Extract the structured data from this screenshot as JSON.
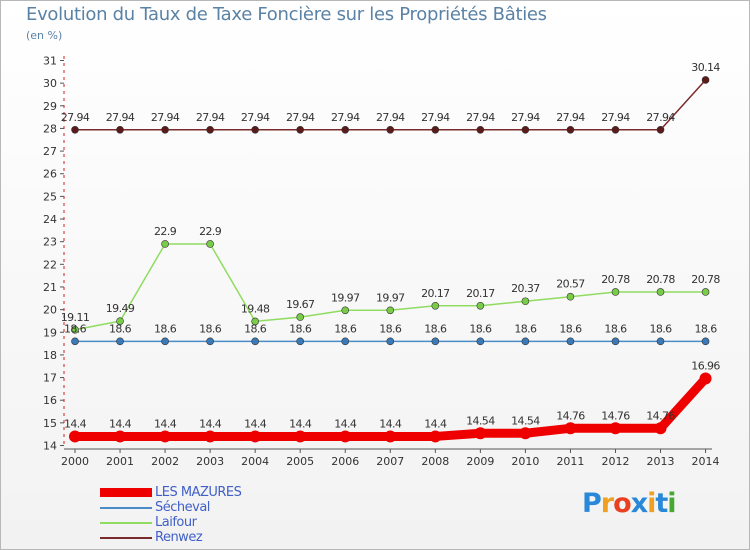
{
  "title": "Evolution du Taux de Taxe Foncière sur les Propriétés Bâties",
  "subtitle": "(en %)",
  "logo": {
    "text": "Proxiti",
    "colors": [
      "#2a88d8",
      "#f0a020",
      "#e84020",
      "#2a88d8",
      "#f0a020",
      "#2a88d8",
      "#48a830"
    ]
  },
  "chart_data": {
    "type": "line",
    "x": [
      "2000",
      "2001",
      "2002",
      "2003",
      "2004",
      "2005",
      "2006",
      "2007",
      "2008",
      "2009",
      "2010",
      "2011",
      "2012",
      "2013",
      "2014"
    ],
    "ylim": [
      14,
      31
    ],
    "yticks": [
      14,
      15,
      16,
      17,
      18,
      19,
      20,
      21,
      22,
      23,
      24,
      25,
      26,
      27,
      28,
      29,
      30,
      31
    ],
    "grid": false,
    "series": [
      {
        "name": "Renwez",
        "color": "#7a2a2a",
        "marker": "#5c1a1a",
        "width": 1.5,
        "radius": 3.5,
        "values": [
          27.94,
          27.94,
          27.94,
          27.94,
          27.94,
          27.94,
          27.94,
          27.94,
          27.94,
          27.94,
          27.94,
          27.94,
          27.94,
          27.94,
          30.14
        ],
        "labels": [
          "27.94",
          "27.94",
          "27.94",
          "27.94",
          "27.94",
          "27.94",
          "27.94",
          "27.94",
          "27.94",
          "27.94",
          "27.94",
          "27.94",
          "27.94",
          "27.94",
          "30.14"
        ]
      },
      {
        "name": "Laifour",
        "color": "#90dc60",
        "marker": "#78cc48",
        "width": 1.5,
        "radius": 3.5,
        "values": [
          19.11,
          19.49,
          22.9,
          22.9,
          19.48,
          19.67,
          19.97,
          19.97,
          20.17,
          20.17,
          20.37,
          20.57,
          20.78,
          20.78,
          20.78
        ],
        "labels": [
          "19.11",
          "19.49",
          "22.9",
          "22.9",
          "19.48",
          "19.67",
          "19.97",
          "19.97",
          "20.17",
          "20.17",
          "20.37",
          "20.57",
          "20.78",
          "20.78",
          "20.78"
        ]
      },
      {
        "name": "Sécheval",
        "color": "#4a8cc8",
        "marker": "#3a7ab8",
        "width": 1.5,
        "radius": 3.5,
        "values": [
          18.6,
          18.6,
          18.6,
          18.6,
          18.6,
          18.6,
          18.6,
          18.6,
          18.6,
          18.6,
          18.6,
          18.6,
          18.6,
          18.6,
          18.6
        ],
        "labels": [
          "18.6",
          "18.6",
          "18.6",
          "18.6",
          "18.6",
          "18.6",
          "18.6",
          "18.6",
          "18.6",
          "18.6",
          "18.6",
          "18.6",
          "18.6",
          "18.6",
          "18.6"
        ]
      },
      {
        "name": "LES MAZURES",
        "color": "#ee0000",
        "marker": "#ee0000",
        "width": 9,
        "radius": 6,
        "values": [
          14.4,
          14.4,
          14.4,
          14.4,
          14.4,
          14.4,
          14.4,
          14.4,
          14.4,
          14.54,
          14.54,
          14.76,
          14.76,
          14.76,
          16.96
        ],
        "labels": [
          "14.4",
          "14.4",
          "14.4",
          "14.4",
          "14.4",
          "14.4",
          "14.4",
          "14.4",
          "14.4",
          "14.54",
          "14.54",
          "14.76",
          "14.76",
          "14.76",
          "16.96"
        ]
      }
    ],
    "legend": [
      {
        "name": "LES MAZURES",
        "color": "#ee0000",
        "thickness": 9
      },
      {
        "name": "Sécheval",
        "color": "#4a8cc8",
        "thickness": 2
      },
      {
        "name": "Laifour",
        "color": "#90dc60",
        "thickness": 2
      },
      {
        "name": "Renwez",
        "color": "#7a2a2a",
        "thickness": 2
      }
    ]
  }
}
